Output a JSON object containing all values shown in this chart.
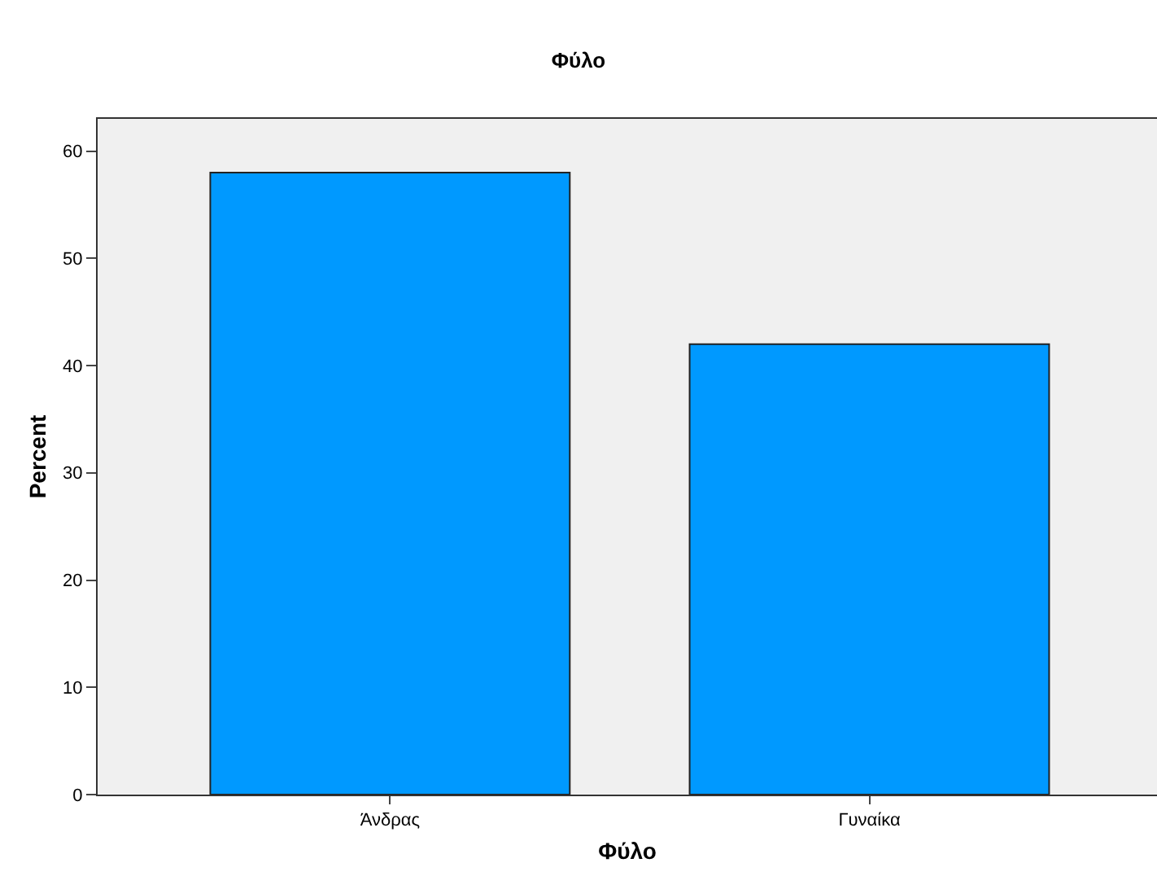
{
  "chart_data": {
    "type": "bar",
    "title": "Φύλο",
    "xlabel": "Φύλο",
    "ylabel": "Percent",
    "categories": [
      "Άνδρας",
      "Γυναίκα"
    ],
    "series": [
      {
        "color": "#0099ff",
        "values": [
          58,
          42
        ]
      }
    ],
    "ylim": [
      0,
      63
    ],
    "yticks": [
      0,
      10,
      20,
      30,
      40,
      50,
      60
    ],
    "grid": false,
    "legend": false
  }
}
